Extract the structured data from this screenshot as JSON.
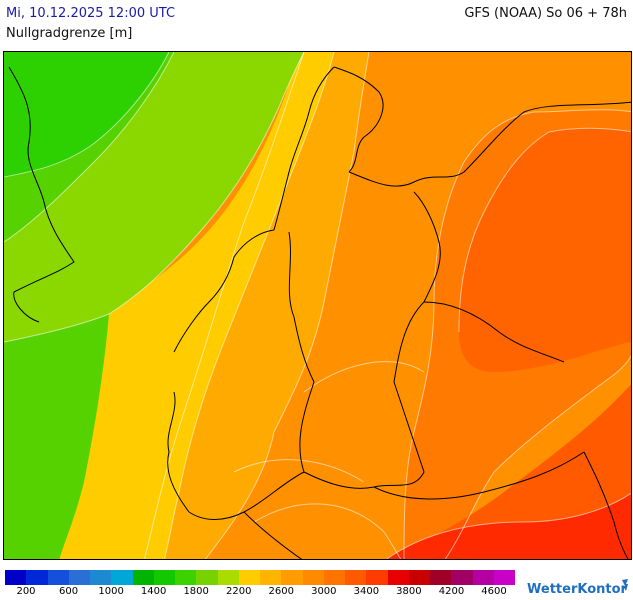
{
  "header": {
    "datetime": "Mi, 10.12.2025 12:00 UTC",
    "parameter": "Nullgradgrenze [m]",
    "model": "GFS (NOAA) So 06 + 78h"
  },
  "legend": {
    "colors": [
      "#0000c8",
      "#0028d8",
      "#1450dc",
      "#2a6fd6",
      "#1e88d0",
      "#00a8d8",
      "#00b400",
      "#14c800",
      "#3cd200",
      "#78d200",
      "#aadc00",
      "#ffcc00",
      "#ffb400",
      "#ff9c00",
      "#ff8a00",
      "#ff7400",
      "#ff5a00",
      "#ff3c00",
      "#e60000",
      "#c80000",
      "#a00028",
      "#a00064",
      "#b400a0",
      "#c800c8"
    ],
    "ticks": [
      "200",
      "600",
      "1000",
      "1400",
      "1800",
      "2200",
      "2600",
      "3000",
      "3400",
      "3800",
      "4200",
      "4600"
    ]
  },
  "brand": "WetterKontor",
  "map_fill": {
    "green_dark": "#2dd000",
    "green": "#55d200",
    "green_light": "#8ad800",
    "yellow": "#ffcc00",
    "orange_light": "#ffaa00",
    "orange": "#ff9000",
    "orange_dark": "#ff7a00",
    "red_orange": "#ff5a00",
    "red": "#ff2a00"
  }
}
